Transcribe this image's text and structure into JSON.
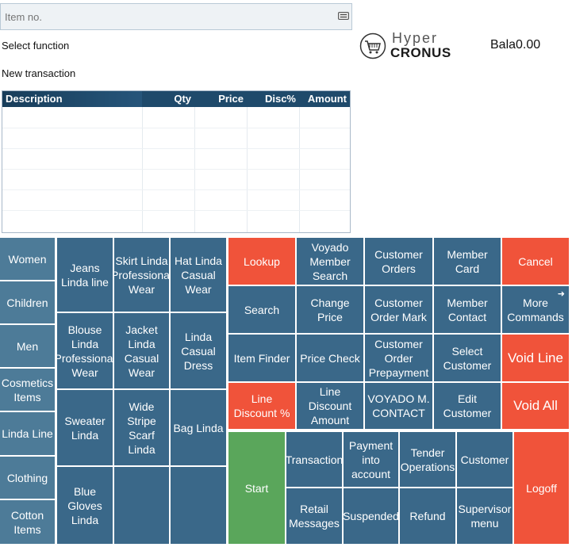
{
  "item_input": {
    "placeholder": "Item no."
  },
  "labels": {
    "select_function": "Select function",
    "new_transaction": "New transaction"
  },
  "logo": {
    "hyper": "Hyper",
    "cronus": "CRONUS"
  },
  "balance": "Bala0.00",
  "table": {
    "columns": [
      "Description",
      "Qty",
      "Price",
      "Disc%",
      "Amount"
    ]
  },
  "categories": [
    "Women",
    "Children",
    "Men",
    "Cosmetics Items",
    "Linda Line",
    "Clothing",
    "Cotton Items"
  ],
  "products": [
    "Jeans Linda line",
    "Skirt Linda Professional Wear",
    "Hat Linda Casual Wear",
    "Blouse Linda Professional Wear",
    "Jacket Linda Casual Wear",
    "Linda Casual Dress",
    "Sweater Linda",
    "Wide Stripe Scarf Linda",
    "Bag Linda",
    "Blue Gloves Linda"
  ],
  "functions": [
    "Lookup",
    "Voyado Member Search",
    "Customer Orders",
    "Member Card",
    "Cancel",
    "Search",
    "Change Price",
    "Customer Order Mark",
    "Member Contact",
    "More Commands",
    "Item Finder",
    "Price Check",
    "Customer Order Prepayment",
    "Select Customer",
    "Void Line",
    "Line Discount %",
    "Line Discount Amount",
    "VOYADO M. CONTACT",
    "Edit Customer",
    "Void All"
  ],
  "bottom": [
    "Start",
    "Transaction",
    "Payment into account",
    "Tender Operations",
    "Customer",
    "Logoff",
    "Retail Messages",
    "Suspended",
    "Refund",
    "Supervisor menu"
  ],
  "more_arrow": "➜",
  "colors": {
    "tile": "#3a6889",
    "tile_light": "#4d7b98",
    "red": "#f0533a",
    "green": "#5aa65b",
    "header": "#1f4a6b"
  }
}
